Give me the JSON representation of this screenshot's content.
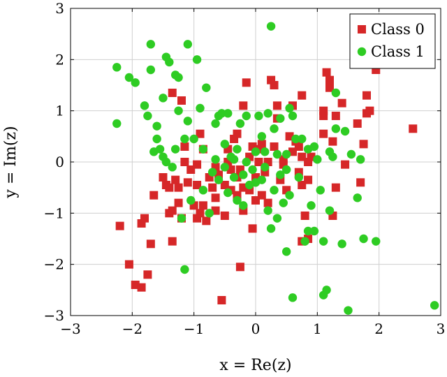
{
  "chart_data": {
    "type": "scatter",
    "xlabel": "x = Re(z)",
    "ylabel": "y = Im(z)",
    "xlim": [
      -3,
      3
    ],
    "ylim": [
      -3,
      3
    ],
    "xticks": [
      -3,
      -2,
      -1,
      0,
      1,
      2,
      3
    ],
    "yticks": [
      -3,
      -2,
      -1,
      0,
      1,
      2,
      3
    ],
    "grid": true,
    "legend_position": "top-right",
    "series": [
      {
        "name": "Class 0",
        "marker": "square",
        "color": "#d62728",
        "points": [
          [
            -2.2,
            -1.25
          ],
          [
            -2.05,
            -2.0
          ],
          [
            -1.95,
            -2.4
          ],
          [
            -1.85,
            -2.45
          ],
          [
            -1.85,
            -1.2
          ],
          [
            -1.8,
            -1.1
          ],
          [
            -1.75,
            -2.2
          ],
          [
            -1.7,
            -1.6
          ],
          [
            -1.65,
            -0.65
          ],
          [
            -1.5,
            -0.3
          ],
          [
            -1.45,
            -0.45
          ],
          [
            -1.4,
            -0.5
          ],
          [
            -1.4,
            -1.0
          ],
          [
            -1.35,
            -0.95
          ],
          [
            -1.35,
            -1.55
          ],
          [
            -1.35,
            1.35
          ],
          [
            -1.3,
            -0.35
          ],
          [
            -1.25,
            -0.8
          ],
          [
            -1.25,
            -0.5
          ],
          [
            -1.2,
            -1.1
          ],
          [
            -1.2,
            1.2
          ],
          [
            -1.15,
            0.3
          ],
          [
            -1.15,
            0.0
          ],
          [
            -1.1,
            -0.4
          ],
          [
            -1.05,
            -0.15
          ],
          [
            -1.0,
            -0.85
          ],
          [
            -0.95,
            -1.1
          ],
          [
            -0.95,
            -0.45
          ],
          [
            -0.95,
            -0.05
          ],
          [
            -0.9,
            0.55
          ],
          [
            -0.9,
            -1.0
          ],
          [
            -0.85,
            -0.85
          ],
          [
            -0.85,
            0.25
          ],
          [
            -0.8,
            -1.15
          ],
          [
            -0.75,
            -0.3
          ],
          [
            -0.7,
            -0.5
          ],
          [
            -0.65,
            -0.1
          ],
          [
            -0.65,
            -0.7
          ],
          [
            -0.65,
            -0.95
          ],
          [
            -0.6,
            -0.25
          ],
          [
            -0.55,
            -2.7
          ],
          [
            -0.5,
            -1.05
          ],
          [
            -0.5,
            -0.45
          ],
          [
            -0.45,
            0.0
          ],
          [
            -0.45,
            0.25
          ],
          [
            -0.4,
            -0.55
          ],
          [
            -0.4,
            -0.15
          ],
          [
            -0.35,
            0.45
          ],
          [
            -0.3,
            -0.3
          ],
          [
            -0.3,
            -0.65
          ],
          [
            -0.3,
            0.55
          ],
          [
            -0.25,
            -2.05
          ],
          [
            -0.25,
            -0.15
          ],
          [
            -0.2,
            -0.95
          ],
          [
            -0.2,
            -0.5
          ],
          [
            -0.2,
            1.1
          ],
          [
            -0.15,
            1.55
          ],
          [
            -0.1,
            0.1
          ],
          [
            -0.1,
            -0.55
          ],
          [
            -0.05,
            0.3
          ],
          [
            -0.05,
            -1.3
          ],
          [
            0.0,
            -0.75
          ],
          [
            0.0,
            -0.3
          ],
          [
            0.05,
            0.25
          ],
          [
            0.05,
            0.0
          ],
          [
            0.1,
            -0.65
          ],
          [
            0.1,
            0.35
          ],
          [
            0.15,
            -0.2
          ],
          [
            0.2,
            0.0
          ],
          [
            0.2,
            -0.8
          ],
          [
            0.25,
            1.6
          ],
          [
            0.3,
            0.3
          ],
          [
            0.3,
            1.5
          ],
          [
            0.35,
            0.85
          ],
          [
            0.35,
            1.1
          ],
          [
            0.4,
            -0.35
          ],
          [
            0.45,
            -0.05
          ],
          [
            0.45,
            0.05
          ],
          [
            0.5,
            -0.55
          ],
          [
            0.55,
            0.5
          ],
          [
            0.6,
            0.2
          ],
          [
            0.6,
            1.1
          ],
          [
            0.65,
            0.4
          ],
          [
            0.7,
            0.3
          ],
          [
            0.7,
            -0.2
          ],
          [
            0.75,
            0.1
          ],
          [
            0.75,
            -0.45
          ],
          [
            0.75,
            1.3
          ],
          [
            0.75,
            -1.55
          ],
          [
            0.8,
            -1.05
          ],
          [
            0.85,
            0.0
          ],
          [
            0.85,
            -1.5
          ],
          [
            0.85,
            -0.35
          ],
          [
            0.9,
            0.1
          ],
          [
            1.1,
            1.0
          ],
          [
            1.1,
            0.9
          ],
          [
            1.1,
            0.55
          ],
          [
            1.15,
            1.75
          ],
          [
            1.2,
            1.45
          ],
          [
            1.2,
            1.6
          ],
          [
            1.25,
            0.4
          ],
          [
            1.25,
            -1.05
          ],
          [
            1.3,
            0.9
          ],
          [
            1.3,
            -0.5
          ],
          [
            1.4,
            1.15
          ],
          [
            1.45,
            -0.05
          ],
          [
            1.65,
            0.75
          ],
          [
            1.7,
            -0.4
          ],
          [
            1.75,
            0.35
          ],
          [
            1.8,
            0.95
          ],
          [
            1.8,
            1.3
          ],
          [
            1.85,
            1.0
          ],
          [
            1.95,
            1.8
          ],
          [
            2.55,
            0.65
          ]
        ]
      },
      {
        "name": "Class 1",
        "marker": "circle",
        "color": "#2ecc23",
        "points": [
          [
            -2.25,
            1.85
          ],
          [
            -2.25,
            0.75
          ],
          [
            -2.05,
            1.65
          ],
          [
            -1.95,
            1.55
          ],
          [
            -1.8,
            1.1
          ],
          [
            -1.75,
            0.9
          ],
          [
            -1.7,
            2.3
          ],
          [
            -1.7,
            1.8
          ],
          [
            -1.65,
            0.2
          ],
          [
            -1.6,
            0.7
          ],
          [
            -1.6,
            0.45
          ],
          [
            -1.55,
            0.25
          ],
          [
            -1.5,
            0.1
          ],
          [
            -1.5,
            1.25
          ],
          [
            -1.45,
            0.0
          ],
          [
            -1.45,
            2.05
          ],
          [
            -1.4,
            1.95
          ],
          [
            -1.35,
            -0.1
          ],
          [
            -1.3,
            0.25
          ],
          [
            -1.3,
            1.7
          ],
          [
            -1.25,
            1.0
          ],
          [
            -1.25,
            1.65
          ],
          [
            -1.2,
            -1.1
          ],
          [
            -1.15,
            0.45
          ],
          [
            -1.15,
            -2.1
          ],
          [
            -1.1,
            2.3
          ],
          [
            -1.1,
            0.8
          ],
          [
            -1.05,
            -0.75
          ],
          [
            -1.0,
            0.45
          ],
          [
            -0.95,
            2.0
          ],
          [
            -0.9,
            1.05
          ],
          [
            -0.85,
            0.25
          ],
          [
            -0.85,
            -0.55
          ],
          [
            -0.8,
            1.45
          ],
          [
            -0.75,
            -1.0
          ],
          [
            -0.7,
            -0.2
          ],
          [
            -0.65,
            0.05
          ],
          [
            -0.65,
            0.75
          ],
          [
            -0.6,
            0.9
          ],
          [
            -0.6,
            -0.35
          ],
          [
            -0.55,
            0.95
          ],
          [
            -0.5,
            0.35
          ],
          [
            -0.5,
            -0.1
          ],
          [
            -0.45,
            -0.6
          ],
          [
            -0.45,
            0.95
          ],
          [
            -0.4,
            0.1
          ],
          [
            -0.35,
            -0.3
          ],
          [
            -0.35,
            0.05
          ],
          [
            -0.3,
            -0.75
          ],
          [
            -0.3,
            0.25
          ],
          [
            -0.25,
            0.75
          ],
          [
            -0.2,
            -0.85
          ],
          [
            -0.2,
            -0.25
          ],
          [
            -0.15,
            0.0
          ],
          [
            -0.15,
            0.9
          ],
          [
            -0.1,
            -0.45
          ],
          [
            -0.05,
            -0.15
          ],
          [
            0.0,
            -0.4
          ],
          [
            0.0,
            0.2
          ],
          [
            0.05,
            0.9
          ],
          [
            0.1,
            0.5
          ],
          [
            0.1,
            -0.35
          ],
          [
            0.15,
            0.2
          ],
          [
            0.15,
            -0.1
          ],
          [
            0.2,
            0.95
          ],
          [
            0.2,
            -0.95
          ],
          [
            0.25,
            -1.3
          ],
          [
            0.25,
            2.65
          ],
          [
            0.3,
            -0.55
          ],
          [
            0.3,
            0.65
          ],
          [
            0.35,
            -1.1
          ],
          [
            0.35,
            0.15
          ],
          [
            0.4,
            -0.25
          ],
          [
            0.4,
            0.85
          ],
          [
            0.45,
            -0.8
          ],
          [
            0.5,
            -1.75
          ],
          [
            0.5,
            0.15
          ],
          [
            0.5,
            -0.15
          ],
          [
            0.55,
            1.05
          ],
          [
            0.55,
            -0.65
          ],
          [
            0.6,
            -2.65
          ],
          [
            0.6,
            0.9
          ],
          [
            0.65,
            0.45
          ],
          [
            0.7,
            -0.3
          ],
          [
            0.75,
            0.45
          ],
          [
            0.8,
            -1.55
          ],
          [
            0.85,
            0.25
          ],
          [
            0.85,
            -1.35
          ],
          [
            0.9,
            -0.85
          ],
          [
            0.95,
            -1.35
          ],
          [
            0.95,
            0.3
          ],
          [
            1.0,
            0.05
          ],
          [
            1.05,
            -0.55
          ],
          [
            1.1,
            -2.6
          ],
          [
            1.1,
            -1.55
          ],
          [
            1.15,
            -2.5
          ],
          [
            1.2,
            0.2
          ],
          [
            1.2,
            -0.95
          ],
          [
            1.25,
            0.1
          ],
          [
            1.3,
            1.35
          ],
          [
            1.3,
            0.65
          ],
          [
            1.4,
            -1.6
          ],
          [
            1.45,
            0.6
          ],
          [
            1.5,
            -2.9
          ],
          [
            1.55,
            0.15
          ],
          [
            1.65,
            -0.7
          ],
          [
            1.7,
            0.05
          ],
          [
            1.75,
            -1.5
          ],
          [
            1.95,
            -1.55
          ],
          [
            2.9,
            -2.8
          ]
        ]
      }
    ]
  }
}
